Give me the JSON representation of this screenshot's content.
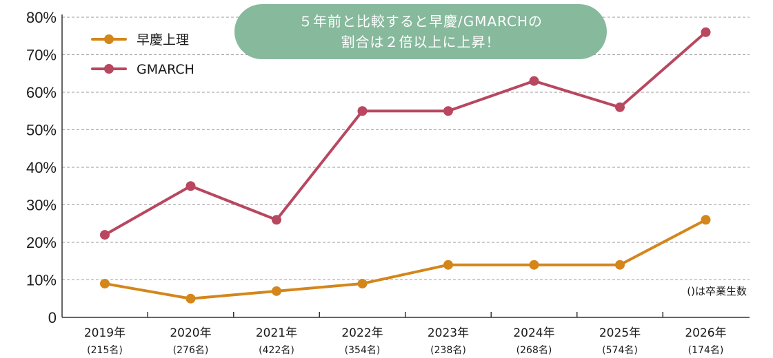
{
  "callout": {
    "line1": "５年前と比較すると早慶/GMARCHの",
    "line2": "割合は２倍以上に上昇！"
  },
  "note": "()は卒業生数",
  "chart_data": {
    "type": "line",
    "categories": [
      "2019年",
      "2020年",
      "2021年",
      "2022年",
      "2023年",
      "2024年",
      "2025年",
      "2026年"
    ],
    "sublabels": [
      "(215名)",
      "(276名)",
      "(422名)",
      "(354名)",
      "(238名)",
      "(268名)",
      "(574名)",
      "(174名)"
    ],
    "series": [
      {
        "name": "早慶上理",
        "color": "#d4861b",
        "values": [
          9,
          5,
          7,
          9,
          14,
          14,
          14,
          26
        ]
      },
      {
        "name": "GMARCH",
        "color": "#b8475f",
        "values": [
          22,
          35,
          26,
          55,
          55,
          63,
          56,
          76
        ]
      }
    ],
    "ylim": [
      0,
      80
    ],
    "yticks": [
      0,
      10,
      20,
      30,
      40,
      50,
      60,
      70,
      80
    ],
    "ytick_labels": [
      "0",
      "10%",
      "20%",
      "30%",
      "40%",
      "50%",
      "60%",
      "70%",
      "80%"
    ],
    "grid": true,
    "legend_position": "top-left"
  }
}
